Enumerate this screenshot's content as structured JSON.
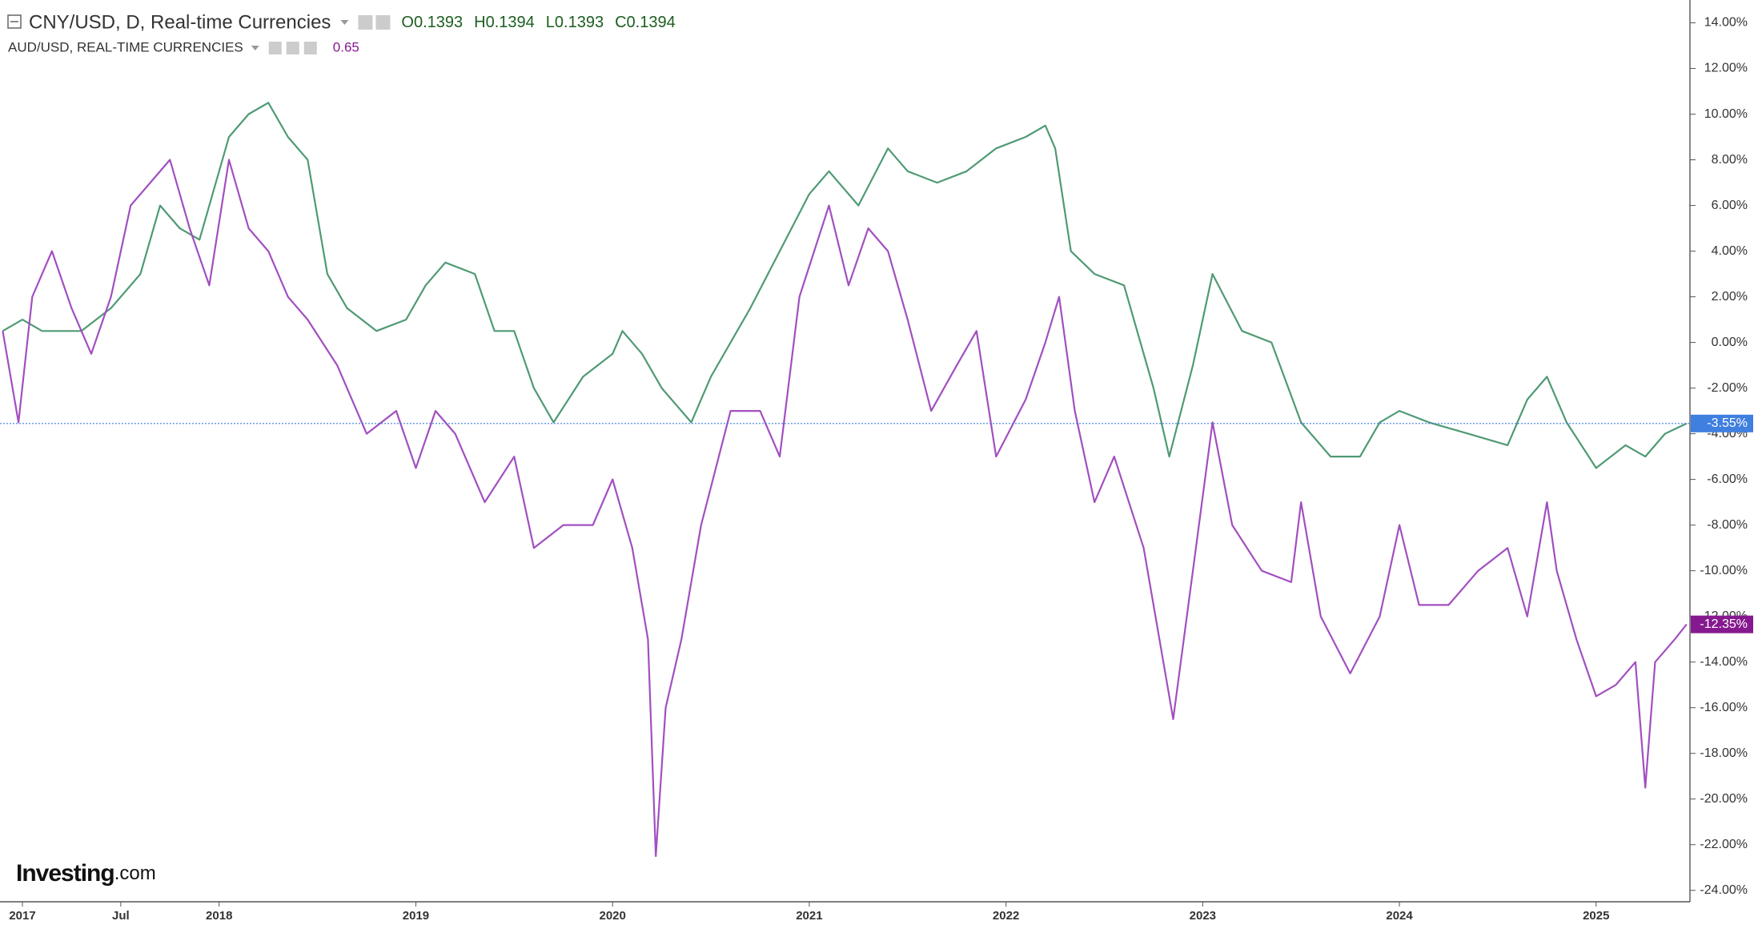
{
  "chart_data": {
    "type": "line",
    "title": "CNY/USD, D, Real-time Currencies",
    "ohlc": [
      {
        "label": "O",
        "value": 0.1393
      },
      {
        "label": "H",
        "value": 0.1394
      },
      {
        "label": "L",
        "value": 0.1393
      },
      {
        "label": "C",
        "value": 0.1394
      }
    ],
    "overlay": {
      "title": "AUD/USD, REAL-TIME CURRENCIES",
      "value": 0.65
    },
    "brand": {
      "name": "Investing",
      "suffix": ".com"
    },
    "xlim": [
      2016.886,
      2025.477
    ],
    "ylim": [
      -24.5,
      15
    ],
    "xticks": [
      {
        "value": 2017,
        "label": "2017"
      },
      {
        "value": 2017.5,
        "label": "Jul"
      },
      {
        "value": 2018,
        "label": "2018"
      },
      {
        "value": 2019,
        "label": "2019"
      },
      {
        "value": 2020,
        "label": "2020"
      },
      {
        "value": 2021,
        "label": "2021"
      },
      {
        "value": 2022,
        "label": "2022"
      },
      {
        "value": 2023,
        "label": "2023"
      },
      {
        "value": 2024,
        "label": "2024"
      },
      {
        "value": 2025,
        "label": "2025"
      }
    ],
    "yticks": [
      {
        "value": 14,
        "label": "14.00%"
      },
      {
        "value": 12,
        "label": "12.00%"
      },
      {
        "value": 10,
        "label": "10.00%"
      },
      {
        "value": 8,
        "label": "8.00%"
      },
      {
        "value": 6,
        "label": "6.00%"
      },
      {
        "value": 4,
        "label": "4.00%"
      },
      {
        "value": 2,
        "label": "2.00%"
      },
      {
        "value": 0,
        "label": "0.00%"
      },
      {
        "value": -2,
        "label": "-2.00%"
      },
      {
        "value": -4,
        "label": "-4.00%"
      },
      {
        "value": -6,
        "label": "-6.00%"
      },
      {
        "value": -8,
        "label": "-8.00%"
      },
      {
        "value": -10,
        "label": "-10.00%"
      },
      {
        "value": -12,
        "label": "-12.00%"
      },
      {
        "value": -14,
        "label": "-14.00%"
      },
      {
        "value": -16,
        "label": "-16.00%"
      },
      {
        "value": -18,
        "label": "-18.00%"
      },
      {
        "value": -20,
        "label": "-20.00%"
      },
      {
        "value": -22,
        "label": "-22.00%"
      },
      {
        "value": -24,
        "label": "-24.00%"
      }
    ],
    "series": [
      {
        "name": "CNY/USD",
        "color": "#4f9a74",
        "label_color": "#3f7fe0",
        "last_value": -3.55,
        "last_value_label": "-3.55%",
        "x": [
          2016.9,
          2017.0,
          2017.1,
          2017.3,
          2017.45,
          2017.6,
          2017.7,
          2017.8,
          2017.9,
          2018.05,
          2018.15,
          2018.25,
          2018.35,
          2018.45,
          2018.55,
          2018.65,
          2018.8,
          2018.95,
          2019.05,
          2019.15,
          2019.3,
          2019.4,
          2019.5,
          2019.6,
          2019.7,
          2019.85,
          2020.0,
          2020.05,
          2020.15,
          2020.25,
          2020.4,
          2020.5,
          2020.7,
          2020.85,
          2021.0,
          2021.1,
          2021.25,
          2021.4,
          2021.5,
          2021.65,
          2021.8,
          2021.95,
          2022.1,
          2022.2,
          2022.25,
          2022.33,
          2022.45,
          2022.6,
          2022.75,
          2022.83,
          2022.95,
          2023.05,
          2023.2,
          2023.35,
          2023.5,
          2023.65,
          2023.8,
          2023.9,
          2024.0,
          2024.15,
          2024.35,
          2024.55,
          2024.65,
          2024.75,
          2024.85,
          2025.0,
          2025.15,
          2025.25,
          2025.35,
          2025.46
        ],
        "values": [
          0.5,
          1.0,
          0.5,
          0.5,
          1.5,
          3.0,
          6,
          5,
          4.5,
          9,
          10,
          10.5,
          9,
          8,
          3,
          1.5,
          0.5,
          1,
          2.5,
          3.5,
          3,
          0.5,
          0.5,
          -2,
          -3.5,
          -1.5,
          -0.5,
          0.5,
          -0.5,
          -2,
          -3.5,
          -1.5,
          1.5,
          4,
          6.5,
          7.5,
          6,
          8.5,
          7.5,
          7,
          7.5,
          8.5,
          9,
          9.5,
          8.5,
          4,
          3,
          2.5,
          -2,
          -5,
          -1,
          3,
          0.5,
          0,
          -3.5,
          -5,
          -5,
          -3.5,
          -3,
          -3.5,
          -4,
          -4.5,
          -2.5,
          -1.5,
          -3.5,
          -5.5,
          -4.5,
          -5,
          -4,
          -3.55
        ]
      },
      {
        "name": "AUD/USD",
        "color": "#a24fc0",
        "label_color": "#86198f",
        "last_value": -12.35,
        "last_value_label": "-12.35%",
        "x": [
          2016.9,
          2016.98,
          2017.05,
          2017.15,
          2017.25,
          2017.35,
          2017.45,
          2017.55,
          2017.65,
          2017.75,
          2017.85,
          2017.95,
          2018.05,
          2018.15,
          2018.25,
          2018.35,
          2018.45,
          2018.6,
          2018.75,
          2018.9,
          2019.0,
          2019.1,
          2019.2,
          2019.35,
          2019.5,
          2019.6,
          2019.75,
          2019.9,
          2020.0,
          2020.1,
          2020.18,
          2020.22,
          2020.27,
          2020.35,
          2020.45,
          2020.6,
          2020.75,
          2020.85,
          2020.95,
          2021.1,
          2021.2,
          2021.3,
          2021.4,
          2021.5,
          2021.62,
          2021.75,
          2021.85,
          2021.95,
          2022.1,
          2022.2,
          2022.27,
          2022.35,
          2022.45,
          2022.55,
          2022.7,
          2022.78,
          2022.85,
          2022.95,
          2023.05,
          2023.15,
          2023.3,
          2023.45,
          2023.5,
          2023.6,
          2023.75,
          2023.9,
          2024.0,
          2024.1,
          2024.25,
          2024.4,
          2024.55,
          2024.65,
          2024.75,
          2024.8,
          2024.9,
          2025.0,
          2025.1,
          2025.2,
          2025.25,
          2025.3,
          2025.4,
          2025.46
        ],
        "values": [
          0.5,
          -3.5,
          2,
          4,
          1.5,
          -0.5,
          2,
          6,
          7,
          8,
          5,
          2.5,
          8,
          5,
          4,
          2,
          1,
          -1,
          -4,
          -3,
          -5.5,
          -3,
          -4,
          -7,
          -5,
          -9,
          -8,
          -8,
          -6,
          -9,
          -13,
          -22.5,
          -16,
          -13,
          -8,
          -3,
          -3,
          -5,
          2,
          6,
          2.5,
          5,
          4,
          1,
          -3,
          -1,
          0.5,
          -5,
          -2.5,
          0,
          2,
          -3,
          -7,
          -5,
          -9,
          -13,
          -16.5,
          -10,
          -3.5,
          -8,
          -10,
          -10.5,
          -7,
          -12,
          -14.5,
          -12,
          -8,
          -11.5,
          -11.5,
          -10,
          -9,
          -12,
          -7,
          -10,
          -13,
          -15.5,
          -15,
          -14,
          -19.5,
          -14,
          -13,
          -12.35
        ]
      }
    ]
  }
}
